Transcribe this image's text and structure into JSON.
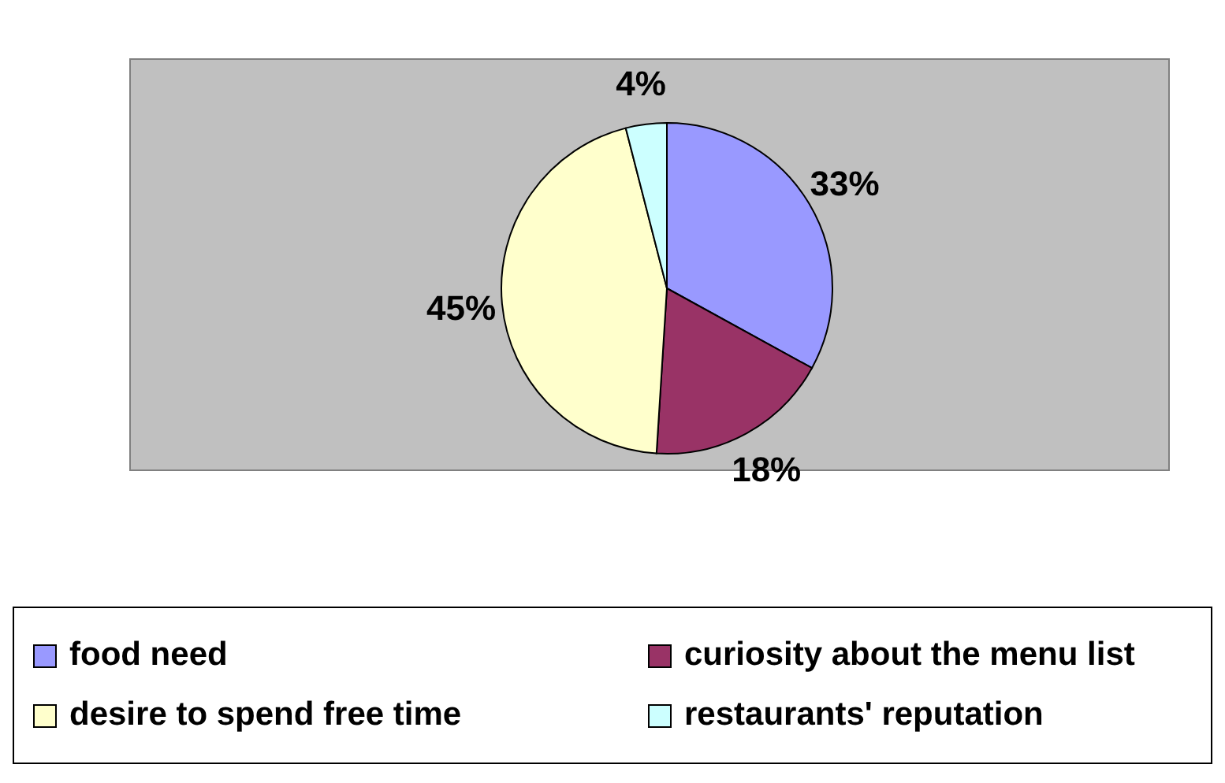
{
  "chart_data": {
    "type": "pie",
    "categories": [
      "food need",
      "curiosity about the menu list",
      "desire to spend free time",
      "restaurants' reputation"
    ],
    "values": [
      33,
      18,
      45,
      4
    ],
    "colors": [
      "#9999ff",
      "#993366",
      "#ffffcc",
      "#ccffff"
    ],
    "value_labels": [
      "33%",
      "18%",
      "45%",
      "4%"
    ],
    "legend": "bottom"
  }
}
